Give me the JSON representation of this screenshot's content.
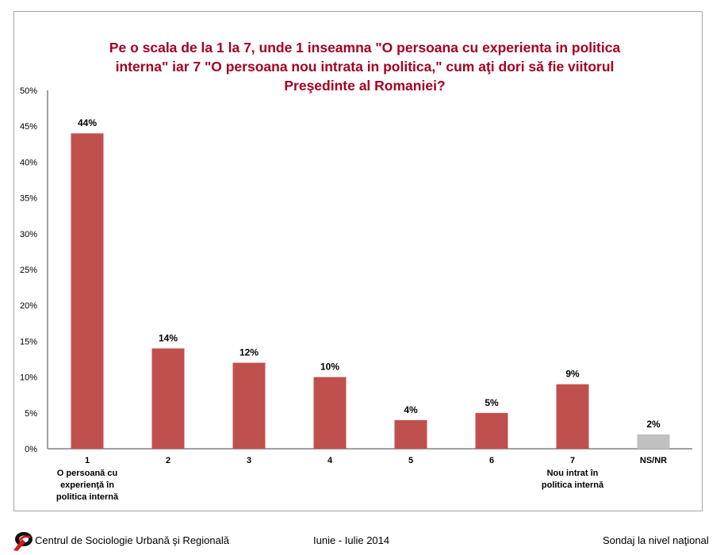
{
  "chart_data": {
    "type": "bar",
    "title_lines": [
      "Pe o scala de la 1 la 7, unde 1 inseamna \"O persoana cu experienta in politica",
      "interna\" iar 7 \"O persoana nou intrata in politica,\" cum aţi dori să fie viitorul",
      "Preşedinte al Romaniei?"
    ],
    "categories": [
      {
        "label": "1",
        "sublabel": [
          "O persoană cu",
          "experienţă în",
          "politica internă"
        ]
      },
      {
        "label": "2",
        "sublabel": []
      },
      {
        "label": "3",
        "sublabel": []
      },
      {
        "label": "4",
        "sublabel": []
      },
      {
        "label": "5",
        "sublabel": []
      },
      {
        "label": "6",
        "sublabel": []
      },
      {
        "label": "7",
        "sublabel": [
          "Nou intrat în",
          "politica internă"
        ]
      },
      {
        "label": "NS/NR",
        "sublabel": []
      }
    ],
    "values": [
      44,
      14,
      12,
      10,
      4,
      5,
      9,
      2
    ],
    "data_labels": [
      "44%",
      "14%",
      "12%",
      "10%",
      "4%",
      "5%",
      "9%",
      "2%"
    ],
    "bar_colors": [
      "#c0504d",
      "#c0504d",
      "#c0504d",
      "#c0504d",
      "#c0504d",
      "#c0504d",
      "#c0504d",
      "#c0c0c0"
    ],
    "ylim": [
      0,
      50
    ],
    "yticks": [
      0,
      5,
      10,
      15,
      20,
      25,
      30,
      35,
      40,
      45,
      50
    ],
    "ytick_labels": [
      "0%",
      "5%",
      "10%",
      "15%",
      "20%",
      "25%",
      "30%",
      "35%",
      "40%",
      "45%",
      "50%"
    ],
    "xlabel": "",
    "ylabel": "",
    "grid": false,
    "legend": "none"
  },
  "footer": {
    "org": "Centrul de Sociologie Urbană şi Regională",
    "period": "Iunie - Iulie 2014",
    "survey": "Sondaj la nivel naţional"
  },
  "colors": {
    "title": "#a50021",
    "bar": "#c0504d",
    "bar_ns": "#c0c0c0",
    "axis": "#808080"
  }
}
